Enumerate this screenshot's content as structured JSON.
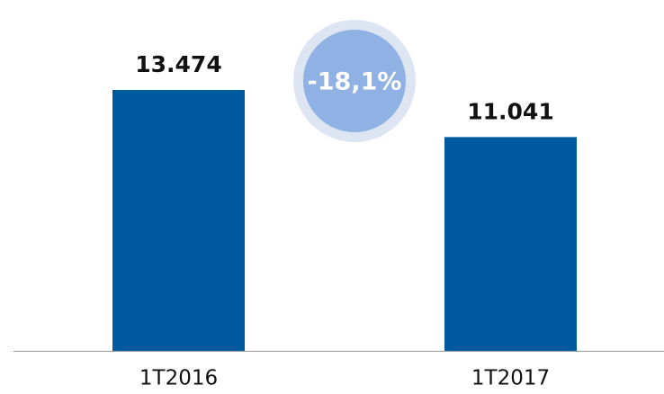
{
  "chart_data": {
    "type": "bar",
    "categories": [
      "1T2016",
      "1T2017"
    ],
    "values": [
      13474,
      11041
    ],
    "value_labels": [
      "13.474",
      "11.041"
    ],
    "color": "#005aa0",
    "annotation": "-18,1%"
  }
}
